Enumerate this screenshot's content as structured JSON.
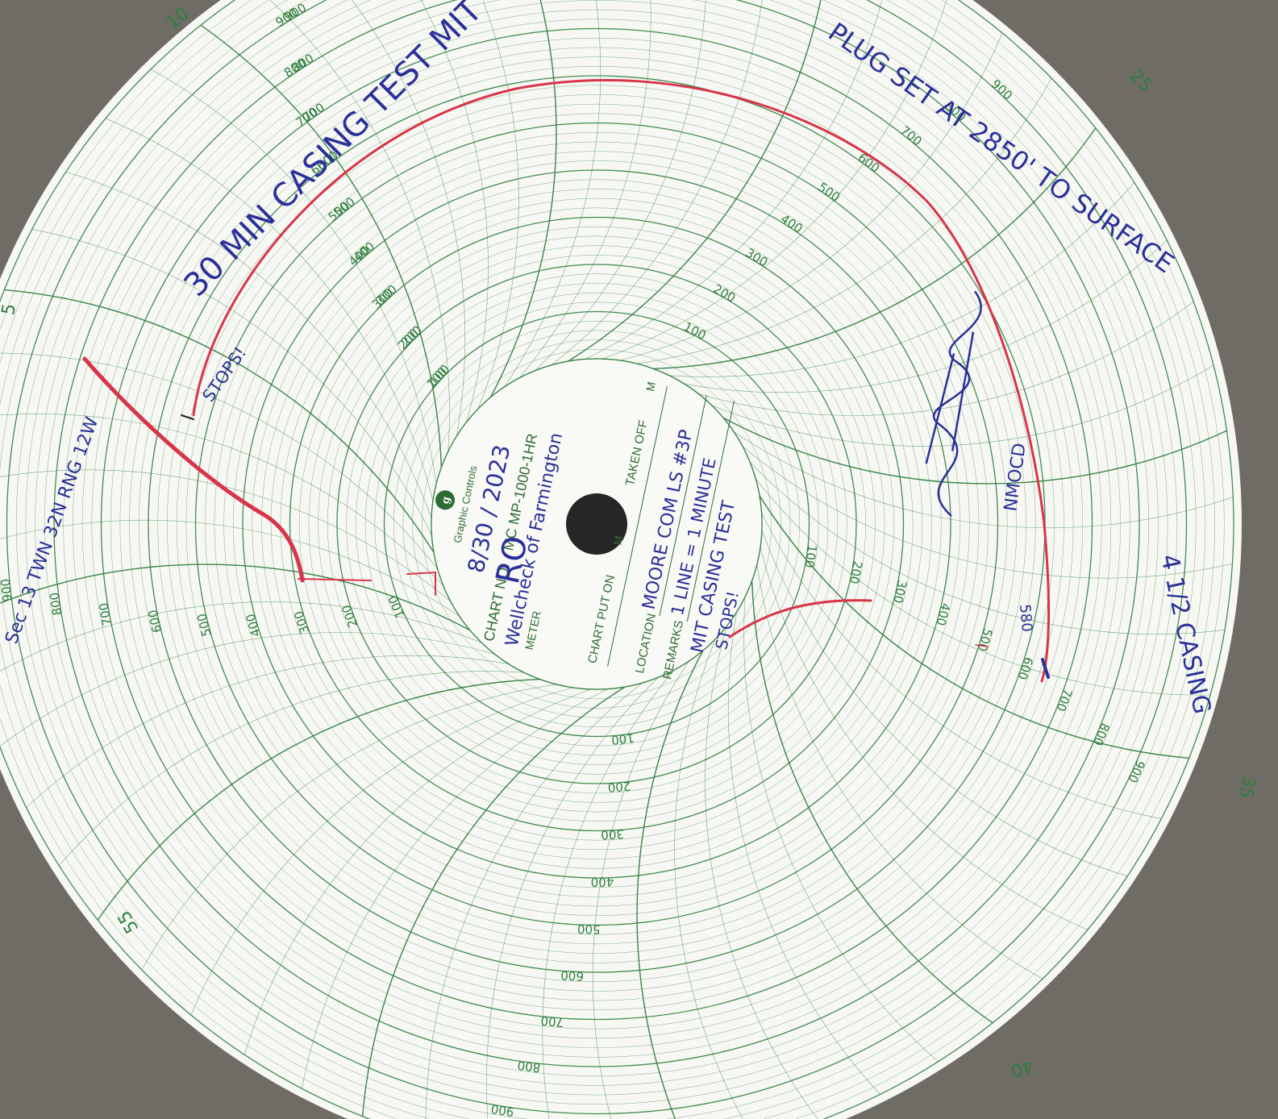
{
  "chart": {
    "brand": "Graphic Controls",
    "chart_no_label": "CHART NO.",
    "chart_no": "MC MP-1000-1HR",
    "meter_label": "METER",
    "chart_put_on_label": "CHART PUT ON",
    "taken_off_label": "TAKEN OFF",
    "m_unit": "M",
    "location_label": "LOCATION",
    "remarks_label": "REMARKS",
    "scale_labels": [
      "100",
      "200",
      "300",
      "400",
      "500",
      "600",
      "700",
      "800",
      "900"
    ],
    "minute_labels": [
      "5",
      "10",
      "25",
      "35",
      "40",
      "55"
    ],
    "colors": {
      "grid": "#2f7d3f",
      "paper": "#f7f8f3",
      "pen_red": "#d8344a",
      "ink_blue": "#2b2f9a",
      "background": "#6f6c66"
    }
  },
  "handwriting": {
    "date": "8/30 / 2023",
    "meter": "Wellcheck of Farmington",
    "location": "MOORE COM LS #3P",
    "remarks_line1": "1 LINE = 1 MINUTE",
    "remarks_line2": "MIT CASING TEST",
    "remarks_line3": "STOPS!",
    "top_title": "30 MIN CASING TEST MIT",
    "start_mark": "STOPS!",
    "plug": "PLUG SET AT 2850' TO SURFACE",
    "casing": "4 1/2 CASING",
    "start_psi": "580",
    "sec_twn": "Sec 13 TWN 32N RNG 12W",
    "initials": "RO",
    "signature": "signature",
    "signature2": "NMOCD"
  },
  "pen_trace": {
    "start_psi": 580,
    "end_psi": 580,
    "duration_min": 30,
    "color": "#d8344a"
  }
}
